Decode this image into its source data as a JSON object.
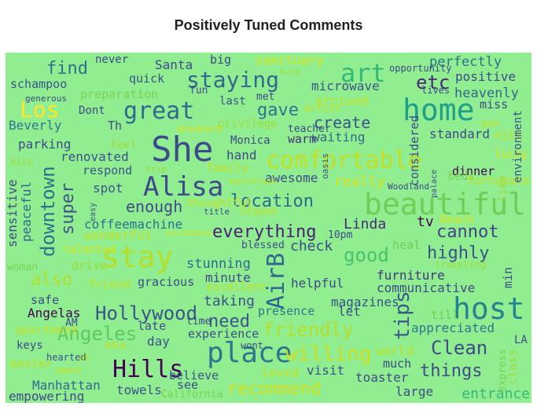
{
  "title": "Positively Tuned Comments",
  "colors": {
    "background": "#90ee90",
    "palette": "viridis"
  },
  "words": [
    {
      "text": "She",
      "color": "#3e4a89"
    },
    {
      "text": "home",
      "color": "#1f9e89"
    },
    {
      "text": "beautiful",
      "color": "#6ece58"
    },
    {
      "text": "place",
      "color": "#2a788e"
    },
    {
      "text": "host",
      "color": "#26828e"
    },
    {
      "text": "stay",
      "color": "#b5de2b"
    },
    {
      "text": "Alisa",
      "color": "#3e4a89"
    },
    {
      "text": "art",
      "color": "#35b779"
    },
    {
      "text": "comfortable",
      "color": "#c2df23"
    },
    {
      "text": "staying",
      "color": "#31688e"
    },
    {
      "text": "great",
      "color": "#31688e"
    },
    {
      "text": "Hills",
      "color": "#440154"
    },
    {
      "text": "Hollywood",
      "color": "#3b528b"
    },
    {
      "text": "Angeles",
      "color": "#5ec962"
    },
    {
      "text": "Los",
      "color": "#fde725"
    },
    {
      "text": "etc",
      "color": "#482878"
    },
    {
      "text": "everything",
      "color": "#482173"
    },
    {
      "text": "location",
      "color": "#31688e"
    },
    {
      "text": "AirB",
      "color": "#31688e"
    },
    {
      "text": "tips",
      "color": "#38598c"
    },
    {
      "text": "friendly",
      "color": "#b5de2b"
    },
    {
      "text": "willing",
      "color": "#c8e020"
    },
    {
      "text": "Clean",
      "color": "#3e4a89"
    },
    {
      "text": "things",
      "color": "#3e4a89"
    },
    {
      "text": "need",
      "color": "#3b528b"
    },
    {
      "text": "really",
      "color": "#d8e219"
    },
    {
      "text": "recommend",
      "color": "#d0e11c"
    },
    {
      "text": "good",
      "color": "#4ac16d"
    },
    {
      "text": "cannot",
      "color": "#414487"
    },
    {
      "text": "highly",
      "color": "#3b528b"
    },
    {
      "text": "downtown",
      "color": "#2c728e"
    },
    {
      "text": "super",
      "color": "#3b528b"
    },
    {
      "text": "find",
      "color": "#2c728e"
    },
    {
      "text": "gave",
      "color": "#2a788e"
    },
    {
      "text": "create",
      "color": "#3b528b"
    },
    {
      "text": "enough",
      "color": "#3e4a89"
    },
    {
      "text": "also",
      "color": "#b5de2b"
    },
    {
      "text": "coffeemachine",
      "color": "#2c728e"
    },
    {
      "text": "wonderful",
      "color": "#c2df23"
    },
    {
      "text": "stunning",
      "color": "#31688e"
    },
    {
      "text": "check",
      "color": "#3e4a89"
    },
    {
      "text": "Linda",
      "color": "#482878"
    },
    {
      "text": "furniture",
      "color": "#46337e"
    },
    {
      "text": "communicative",
      "color": "#3e4a89"
    },
    {
      "text": "magazines",
      "color": "#3b528b"
    },
    {
      "text": "helpful",
      "color": "#3e4a89"
    },
    {
      "text": "appreciated",
      "color": "#2a788e"
    },
    {
      "text": "taking",
      "color": "#3b528b"
    },
    {
      "text": "minute",
      "color": "#3e4a89"
    },
    {
      "text": "Manhattan",
      "color": "#31688e"
    },
    {
      "text": "towels",
      "color": "#3b528b"
    },
    {
      "text": "toaster",
      "color": "#3e4a89"
    },
    {
      "text": "large",
      "color": "#3e4a89"
    },
    {
      "text": "entrance",
      "color": "#35b779"
    },
    {
      "text": "empowering",
      "color": "#3e4a89"
    },
    {
      "text": "Angelas",
      "color": "#440154"
    },
    {
      "text": "parking",
      "color": "#3e4a89"
    },
    {
      "text": "Beverly",
      "color": "#2a788e"
    },
    {
      "text": "sensitive",
      "color": "#3e4a89"
    },
    {
      "text": "peaceful",
      "color": "#31688e"
    },
    {
      "text": "renovated",
      "color": "#3b528b"
    },
    {
      "text": "respond",
      "color": "#3b528b"
    },
    {
      "text": "spot",
      "color": "#3b528b"
    },
    {
      "text": "schampoo",
      "color": "#3b528b"
    },
    {
      "text": "preparation",
      "color": "#7ad151"
    },
    {
      "text": "quick",
      "color": "#3b528b"
    },
    {
      "text": "Santa",
      "color": "#3e4a89"
    },
    {
      "text": "sanctuary",
      "color": "#d8e219"
    },
    {
      "text": "perfectly",
      "color": "#2c728e"
    },
    {
      "text": "positive",
      "color": "#3e4a89"
    },
    {
      "text": "heavenly",
      "color": "#31688e"
    },
    {
      "text": "microwave",
      "color": "#3b528b"
    },
    {
      "text": "arrived",
      "color": "#c2df23"
    },
    {
      "text": "standard",
      "color": "#3e4a89"
    },
    {
      "text": "waiting",
      "color": "#31688e"
    },
    {
      "text": "Monica",
      "color": "#3e4a89"
    },
    {
      "text": "warm",
      "color": "#46337e"
    },
    {
      "text": "hand",
      "color": "#3e4a89"
    },
    {
      "text": "last",
      "color": "#3b528b"
    },
    {
      "text": "family",
      "color": "#c2df23"
    },
    {
      "text": "privilege",
      "color": "#a0da39"
    },
    {
      "text": "awesome",
      "color": "#3e4a89"
    },
    {
      "text": "dinner",
      "color": "#440154"
    },
    {
      "text": "beds",
      "color": "#7ad151"
    },
    {
      "text": "nice",
      "color": "#c8e020"
    },
    {
      "text": "lucky",
      "color": "#d8e219"
    },
    {
      "text": "fortunate",
      "color": "#c2df23"
    },
    {
      "text": "environment",
      "color": "#3b528b"
    },
    {
      "text": "like",
      "color": "#a0da39"
    },
    {
      "text": "tv",
      "color": "#440154"
    },
    {
      "text": "heal",
      "color": "#6ece58"
    },
    {
      "text": "min",
      "color": "#3b528b"
    },
    {
      "text": "till",
      "color": "#6ece58"
    },
    {
      "text": "LA",
      "color": "#3e4a89"
    },
    {
      "text": "class",
      "color": "#a0da39"
    },
    {
      "text": "express",
      "color": "#7ad151"
    },
    {
      "text": "world",
      "color": "#c2df23"
    },
    {
      "text": "much",
      "color": "#3e4a89"
    },
    {
      "text": "let",
      "color": "#3e4a89"
    },
    {
      "text": "visit",
      "color": "#3b528b"
    },
    {
      "text": "loved",
      "color": "#c2df23"
    },
    {
      "text": "presence",
      "color": "#2a788e"
    },
    {
      "text": "experience",
      "color": "#3e4a89"
    },
    {
      "text": "time",
      "color": "#3e4a89"
    },
    {
      "text": "believe",
      "color": "#3b528b"
    },
    {
      "text": "see",
      "color": "#3e4a89"
    },
    {
      "text": "California",
      "color": "#7ad151"
    },
    {
      "text": "late",
      "color": "#3e4a89"
    },
    {
      "text": "day",
      "color": "#3b528b"
    },
    {
      "text": "gracious",
      "color": "#3e4a89"
    },
    {
      "text": "friend",
      "color": "#c2df23"
    },
    {
      "text": "drive",
      "color": "#a0da39"
    },
    {
      "text": "safe",
      "color": "#3e4a89"
    },
    {
      "text": "apartment",
      "color": "#c2df23"
    },
    {
      "text": "keys",
      "color": "#3e4a89"
    },
    {
      "text": "master",
      "color": "#c2df23"
    },
    {
      "text": "want",
      "color": "#c2df23"
    },
    {
      "text": "hearted",
      "color": "#3b528b"
    },
    {
      "text": "US",
      "color": "#c2df23"
    },
    {
      "text": "aka",
      "color": "#c2df23"
    },
    {
      "text": "AM",
      "color": "#3e4a89"
    },
    {
      "text": "woman",
      "color": "#7ad151"
    },
    {
      "text": "excellent",
      "color": "#c2df23"
    },
    {
      "text": "wont",
      "color": "#3e4a89"
    },
    {
      "text": "traveling",
      "color": "#a0da39"
    },
    {
      "text": "talented",
      "color": "#d8e219"
    },
    {
      "text": "blessed",
      "color": "#3e4a89"
    },
    {
      "text": "10pm",
      "color": "#3e4a89"
    },
    {
      "text": "incredible",
      "color": "#d8e219"
    },
    {
      "text": "stayed",
      "color": "#c2df23"
    },
    {
      "text": "title",
      "color": "#3e4a89"
    },
    {
      "text": "thoughtful",
      "color": "#c2df23"
    },
    {
      "text": "Beach",
      "color": "#d8e219"
    },
    {
      "text": "Woodland",
      "color": "#3e4a89"
    },
    {
      "text": "considered",
      "color": "#3e4a89"
    },
    {
      "text": "palace",
      "color": "#3e4a89"
    },
    {
      "text": "oasis",
      "color": "#3e4a89"
    },
    {
      "text": "marvelous",
      "color": "#c2df23"
    },
    {
      "text": "trip",
      "color": "#a0da39"
    },
    {
      "text": "easy",
      "color": "#3b528b"
    },
    {
      "text": "anywhere",
      "color": "#d8e219"
    },
    {
      "text": "feel",
      "color": "#a0da39"
    },
    {
      "text": "Th",
      "color": "#3e4a89"
    },
    {
      "text": "Dont",
      "color": "#3e4a89"
    },
    {
      "text": "else",
      "color": "#a0da39"
    },
    {
      "text": "generous",
      "color": "#3e4a89"
    },
    {
      "text": "never",
      "color": "#3e4a89"
    },
    {
      "text": "big",
      "color": "#3e4a89"
    },
    {
      "text": "kind",
      "color": "#a0da39"
    },
    {
      "text": "fun",
      "color": "#3e4a89"
    },
    {
      "text": "met",
      "color": "#3e4a89"
    },
    {
      "text": "teacher",
      "color": "#3e4a89"
    },
    {
      "text": "artist",
      "color": "#c2df23"
    },
    {
      "text": "opportunity",
      "color": "#3e4a89"
    },
    {
      "text": "lives",
      "color": "#3e4a89"
    },
    {
      "text": "miss",
      "color": "#3e4a89"
    },
    {
      "text": "gem",
      "color": "#c2df23"
    },
    {
      "text": "allowed",
      "color": "#c2df23"
    },
    {
      "text": "ever",
      "color": "#3b528b"
    },
    {
      "text": "filled",
      "color": "#3e4a89"
    },
    {
      "text": "gorgeous",
      "color": "#3e4a89"
    },
    {
      "text": "rest",
      "color": "#3e4a89"
    },
    {
      "text": "simply",
      "color": "#3e4a89"
    }
  ]
}
